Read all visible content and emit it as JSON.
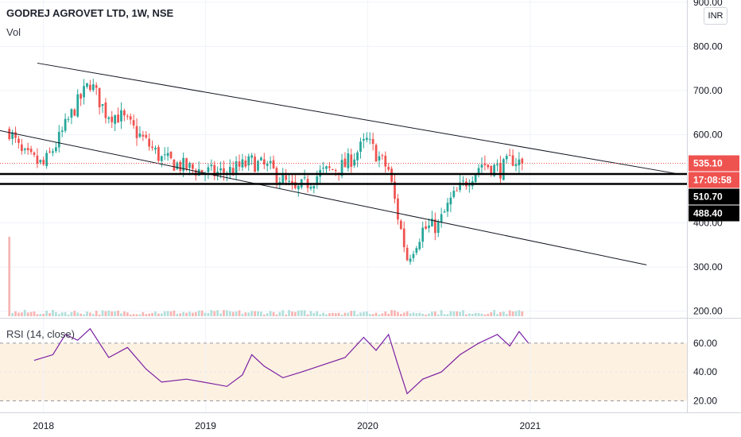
{
  "header": {
    "symbol_title": "GODREJ AGROVET LTD, 1W, NSE",
    "volume_label": "Vol",
    "currency_button": "INR"
  },
  "rsi": {
    "label": "RSI (14, close)",
    "upper_band": 60,
    "lower_band": 20
  },
  "price_tags": [
    {
      "text": "535.10",
      "color": "#ef5350",
      "value": 535.1
    },
    {
      "text": "17:08:58",
      "color": "#ef5350",
      "value": 514
    },
    {
      "text": "510.70",
      "color": "#000000",
      "value": 510.7
    },
    {
      "text": "488.40",
      "color": "#000000",
      "value": 488.4
    }
  ],
  "colors": {
    "up": "#26a69a",
    "down": "#ef5350",
    "rsi_line": "#7b1fa2",
    "rsi_band_fill": "#fdf1e2",
    "grid": "#f0f3fa"
  },
  "chart_data": [
    {
      "type": "candlestick",
      "title": "GODREJ AGROVET LTD, 1W, NSE",
      "x_ticks": [
        "2018",
        "2019",
        "2020",
        "2021"
      ],
      "y_ticks": [
        200,
        300,
        400,
        500,
        600,
        700,
        800,
        900
      ],
      "y_tick_labels": [
        "200.00",
        "300.00",
        "400.00",
        "500.00",
        "600.00",
        "700.00",
        "800.00",
        "900.00"
      ],
      "ylim": [
        185,
        905
      ],
      "x_range": [
        "2017-09-25",
        "2021-12-20"
      ],
      "grid": true,
      "last_close": 535.1,
      "horizontal_levels": [
        510.7,
        488.4
      ],
      "trend_lines": [
        {
          "from": [
            "2017-12-18",
            762
          ],
          "to": [
            "2021-12-06",
            510
          ]
        },
        {
          "from": [
            "2017-09-11",
            612
          ],
          "to": [
            "2021-09-20",
            305
          ]
        }
      ],
      "ohlc_path": [
        [
          "2017-10-16",
          610
        ],
        [
          "2017-11-13",
          555
        ],
        [
          "2018-01-01",
          530
        ],
        [
          "2018-02-05",
          590
        ],
        [
          "2018-03-12",
          660
        ],
        [
          "2018-04-16",
          718
        ],
        [
          "2018-05-21",
          650
        ],
        [
          "2018-06-25",
          640
        ],
        [
          "2018-08-13",
          590
        ],
        [
          "2018-09-24",
          545
        ],
        [
          "2018-11-19",
          525
        ],
        [
          "2019-01-21",
          512
        ],
        [
          "2019-03-04",
          520
        ],
        [
          "2019-04-15",
          538
        ],
        [
          "2019-05-27",
          522
        ],
        [
          "2019-07-22",
          470
        ],
        [
          "2019-09-16",
          512
        ],
        [
          "2019-11-11",
          530
        ],
        [
          "2019-12-30",
          585
        ],
        [
          "2020-02-17",
          520
        ],
        [
          "2020-03-09",
          415
        ],
        [
          "2020-03-30",
          320
        ],
        [
          "2020-05-04",
          385
        ],
        [
          "2020-06-08",
          395
        ],
        [
          "2020-07-06",
          450
        ],
        [
          "2020-08-10",
          495
        ],
        [
          "2020-09-14",
          535
        ],
        [
          "2020-10-26",
          520
        ],
        [
          "2020-11-23",
          545
        ],
        [
          "2020-12-14",
          535.1
        ]
      ],
      "volume_spike": {
        "date": "2017-10-16",
        "relative": 1.0
      }
    },
    {
      "type": "line",
      "title": "RSI (14, close)",
      "ylim": [
        12,
        77
      ],
      "y_ticks": [
        20,
        40,
        60
      ],
      "y_tick_labels": [
        "20.00",
        "40.00",
        "60.00"
      ],
      "band": [
        20,
        60
      ],
      "points": [
        [
          "2017-12-11",
          48
        ],
        [
          "2018-01-22",
          52
        ],
        [
          "2018-02-19",
          66
        ],
        [
          "2018-03-19",
          62
        ],
        [
          "2018-04-16",
          70
        ],
        [
          "2018-05-28",
          50
        ],
        [
          "2018-07-09",
          57
        ],
        [
          "2018-08-20",
          42
        ],
        [
          "2018-09-24",
          33
        ],
        [
          "2018-11-19",
          35
        ],
        [
          "2019-01-14",
          32
        ],
        [
          "2019-02-18",
          30
        ],
        [
          "2019-03-25",
          38
        ],
        [
          "2019-04-15",
          52
        ],
        [
          "2019-05-13",
          44
        ],
        [
          "2019-06-24",
          36
        ],
        [
          "2019-08-05",
          40
        ],
        [
          "2019-09-23",
          45
        ],
        [
          "2019-11-11",
          50
        ],
        [
          "2019-12-23",
          64
        ],
        [
          "2020-01-20",
          55
        ],
        [
          "2020-02-17",
          66
        ],
        [
          "2020-03-09",
          45
        ],
        [
          "2020-03-30",
          25
        ],
        [
          "2020-05-04",
          35
        ],
        [
          "2020-06-15",
          40
        ],
        [
          "2020-07-27",
          52
        ],
        [
          "2020-09-07",
          60
        ],
        [
          "2020-10-19",
          66
        ],
        [
          "2020-11-16",
          58
        ],
        [
          "2020-12-07",
          68
        ],
        [
          "2020-12-28",
          60
        ]
      ]
    }
  ]
}
